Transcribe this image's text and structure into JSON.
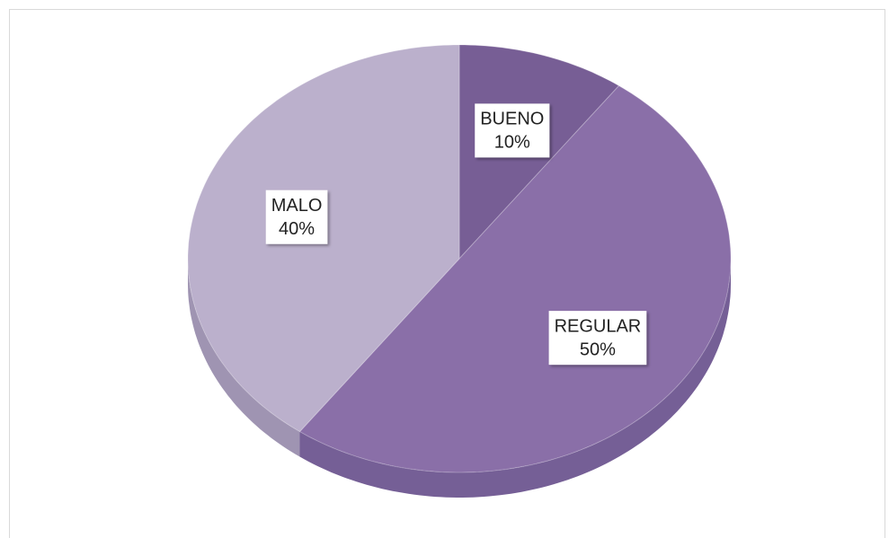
{
  "chart_data": {
    "type": "pie",
    "categories": [
      "BUENO",
      "REGULAR",
      "MALO"
    ],
    "values": [
      10,
      50,
      40
    ],
    "value_labels": [
      "10%",
      "50%",
      "40%"
    ],
    "colors": [
      "#775e95",
      "#8a6fa8",
      "#bbb0cc"
    ],
    "side_colors": [
      "#5e4a78",
      "#6e5690",
      "#9a8eae"
    ]
  }
}
